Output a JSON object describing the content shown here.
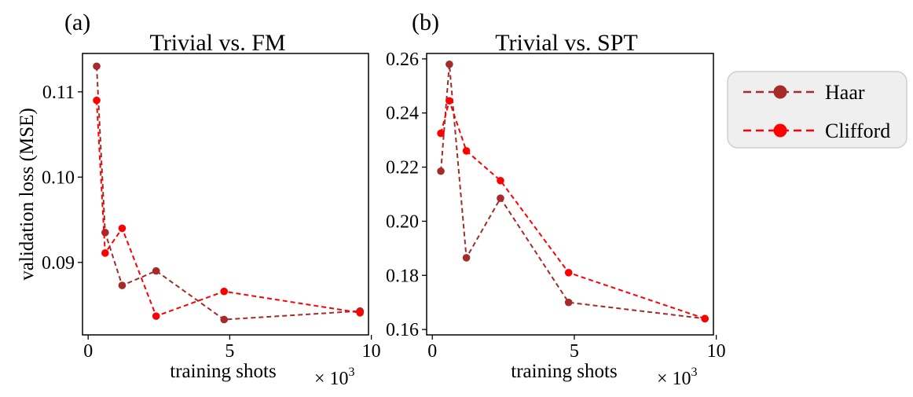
{
  "legend": {
    "entries": [
      {
        "name": "Haar",
        "color": "#a52a2a"
      },
      {
        "name": "Clifford",
        "color": "#ff0000"
      }
    ],
    "placement": "right"
  },
  "chart_data": [
    {
      "panel": "(a)",
      "type": "line",
      "title": "Trivial vs. FM",
      "xlabel": "training shots",
      "ylabel": "validation loss (MSE)",
      "x_multiplier": "× 10",
      "x_multiplier_exp": "3",
      "xlim": [
        -0.2,
        9.9
      ],
      "ylim": [
        0.0815,
        0.1145
      ],
      "xticks": [
        0,
        5,
        10
      ],
      "xtick_labels": [
        "0",
        "5",
        "10"
      ],
      "yticks": [
        0.09,
        0.1,
        0.11
      ],
      "ytick_labels": [
        "0.09",
        "0.10",
        "0.11"
      ],
      "series": [
        {
          "name": "Haar",
          "color": "#a52a2a",
          "x": [
            0.3,
            0.6,
            1.2,
            2.4,
            4.8,
            9.6
          ],
          "values": [
            0.113,
            0.0935,
            0.0873,
            0.089,
            0.0833,
            0.0843
          ]
        },
        {
          "name": "Clifford",
          "color": "#ff0000",
          "x": [
            0.3,
            0.6,
            1.2,
            2.4,
            4.8,
            9.6
          ],
          "values": [
            0.109,
            0.0911,
            0.094,
            0.0837,
            0.0866,
            0.0841
          ]
        }
      ]
    },
    {
      "panel": "(b)",
      "type": "line",
      "title": "Trivial vs. SPT",
      "xlabel": "training shots",
      "ylabel": "",
      "x_multiplier": "× 10",
      "x_multiplier_exp": "3",
      "xlim": [
        -0.2,
        9.9
      ],
      "ylim": [
        0.158,
        0.262
      ],
      "xticks": [
        0,
        5,
        10
      ],
      "xtick_labels": [
        "0",
        "5",
        "10"
      ],
      "yticks": [
        0.16,
        0.18,
        0.2,
        0.22,
        0.24,
        0.26
      ],
      "ytick_labels": [
        "0.16",
        "0.18",
        "0.20",
        "0.22",
        "0.24",
        "0.26"
      ],
      "series": [
        {
          "name": "Haar",
          "color": "#a52a2a",
          "x": [
            0.3,
            0.6,
            1.2,
            2.4,
            4.8,
            9.6
          ],
          "values": [
            0.2185,
            0.258,
            0.1865,
            0.2085,
            0.17,
            0.164
          ]
        },
        {
          "name": "Clifford",
          "color": "#ff0000",
          "x": [
            0.3,
            0.6,
            1.2,
            2.4,
            4.8,
            9.6
          ],
          "values": [
            0.2325,
            0.2445,
            0.226,
            0.215,
            0.181,
            0.164
          ]
        }
      ]
    }
  ]
}
